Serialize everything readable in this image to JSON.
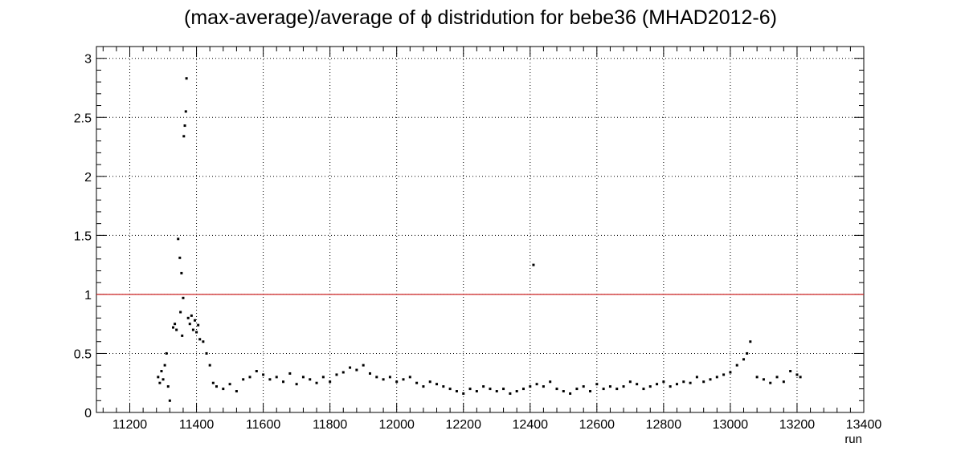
{
  "chart_data": {
    "type": "scatter",
    "title": "(max-average)/average of ϕ distridution for bebe36 (MHAD2012-6)",
    "xlabel": "run",
    "ylabel": "",
    "xlim": [
      11100,
      13400
    ],
    "ylim": [
      0,
      3.1
    ],
    "x_ticks": [
      11200,
      11400,
      11600,
      11800,
      12000,
      12200,
      12400,
      12600,
      12800,
      13000,
      13200,
      13400
    ],
    "y_ticks": [
      0,
      0.5,
      1,
      1.5,
      2,
      2.5,
      3
    ],
    "x_tick_labels": [
      "11200",
      "11400",
      "11600",
      "11800",
      "12000",
      "12200",
      "12400",
      "12600",
      "12800",
      "13000",
      "13200",
      "13400"
    ],
    "y_tick_labels": [
      "0",
      "0.5",
      "1",
      "1.5",
      "2",
      "2.5",
      "3"
    ],
    "grid": true,
    "marker_color": "#000000",
    "reference_line": {
      "y": 1,
      "color": "#cc2222"
    },
    "series": [
      {
        "x": [
          11285,
          11290,
          11295,
          11300,
          11305,
          11310,
          11315,
          11320,
          11330,
          11335,
          11340,
          11345,
          11350,
          11352,
          11355,
          11357,
          11360,
          11362,
          11365,
          11368,
          11370,
          11375,
          11380,
          11385,
          11390,
          11395,
          11400,
          11405,
          11410,
          11420,
          11430,
          11440,
          11450,
          11460,
          11480,
          11500,
          11520,
          11540,
          11560,
          11580,
          11600,
          11620,
          11640,
          11660,
          11680,
          11700,
          11720,
          11740,
          11760,
          11780,
          11800,
          11820,
          11840,
          11860,
          11880,
          11900,
          11920,
          11940,
          11960,
          11980,
          12000,
          12020,
          12040,
          12060,
          12080,
          12100,
          12120,
          12140,
          12160,
          12180,
          12200,
          12220,
          12240,
          12260,
          12280,
          12300,
          12320,
          12340,
          12360,
          12380,
          12400,
          12410,
          12420,
          12440,
          12460,
          12480,
          12500,
          12520,
          12540,
          12560,
          12580,
          12600,
          12620,
          12640,
          12660,
          12680,
          12700,
          12720,
          12740,
          12760,
          12780,
          12800,
          12820,
          12840,
          12860,
          12880,
          12900,
          12920,
          12940,
          12960,
          12980,
          13000,
          13020,
          13040,
          13050,
          13060,
          13080,
          13100,
          13120,
          13140,
          13160,
          13180,
          13200,
          13210
        ],
        "y": [
          0.3,
          0.25,
          0.35,
          0.28,
          0.4,
          0.5,
          0.22,
          0.1,
          0.72,
          0.75,
          0.7,
          1.47,
          1.31,
          0.85,
          1.18,
          0.65,
          0.97,
          2.34,
          2.43,
          2.55,
          2.83,
          0.8,
          0.75,
          0.82,
          0.7,
          0.78,
          0.68,
          0.74,
          0.62,
          0.6,
          0.5,
          0.4,
          0.25,
          0.22,
          0.2,
          0.24,
          0.18,
          0.28,
          0.3,
          0.35,
          0.32,
          0.28,
          0.3,
          0.26,
          0.33,
          0.24,
          0.3,
          0.28,
          0.25,
          0.3,
          0.26,
          0.32,
          0.34,
          0.38,
          0.36,
          0.4,
          0.33,
          0.3,
          0.28,
          0.3,
          0.26,
          0.28,
          0.3,
          0.25,
          0.22,
          0.26,
          0.24,
          0.22,
          0.2,
          0.18,
          0.16,
          0.2,
          0.18,
          0.22,
          0.2,
          0.18,
          0.2,
          0.16,
          0.18,
          0.2,
          0.22,
          1.25,
          0.24,
          0.22,
          0.26,
          0.2,
          0.18,
          0.16,
          0.2,
          0.22,
          0.18,
          0.24,
          0.2,
          0.22,
          0.2,
          0.22,
          0.26,
          0.24,
          0.2,
          0.22,
          0.24,
          0.26,
          0.22,
          0.24,
          0.26,
          0.25,
          0.3,
          0.26,
          0.28,
          0.3,
          0.32,
          0.34,
          0.4,
          0.45,
          0.5,
          0.6,
          0.3,
          0.28,
          0.25,
          0.3,
          0.26,
          0.35,
          0.32,
          0.3
        ]
      }
    ]
  }
}
